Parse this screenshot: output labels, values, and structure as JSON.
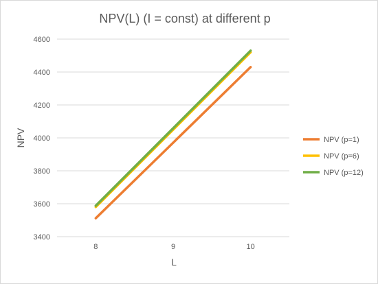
{
  "chart_data": {
    "type": "line",
    "title": "NPV(L) (I = const) at different p",
    "xlabel": "L",
    "ylabel": "NPV",
    "x": [
      8,
      9,
      10
    ],
    "xlim": [
      7.5,
      10.5
    ],
    "ylim": [
      3400,
      4600
    ],
    "yticks": [
      3400,
      3600,
      3800,
      4000,
      4200,
      4400,
      4600
    ],
    "grid": "horizontal",
    "legend_position": "right",
    "series": [
      {
        "name": "NPV (p=1)",
        "color": "#ed7d31",
        "values": [
          3512,
          3971,
          4430
        ]
      },
      {
        "name": "NPV (p=6)",
        "color": "#ffc000",
        "values": [
          3580,
          4050,
          4520
        ]
      },
      {
        "name": "NPV (p=12)",
        "color": "#70ad47",
        "values": [
          3588,
          4059,
          4530
        ]
      }
    ]
  }
}
